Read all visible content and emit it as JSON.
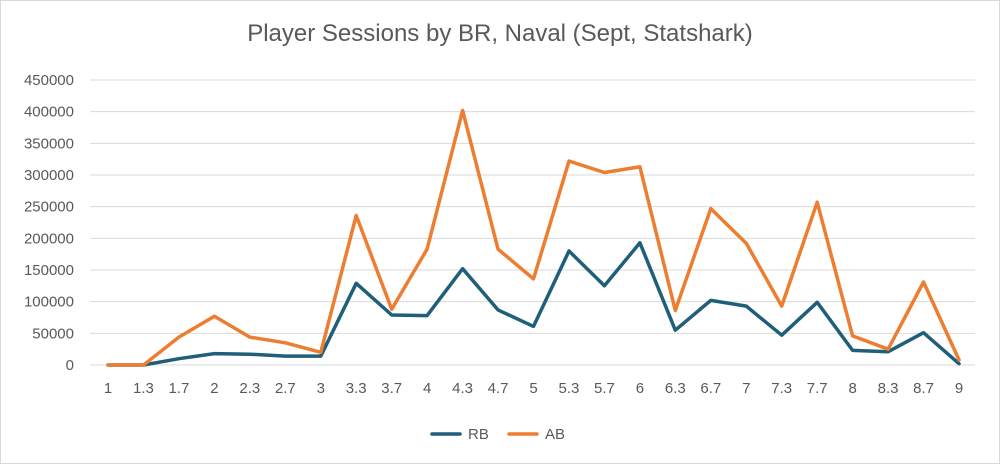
{
  "chart_data": {
    "type": "line",
    "title": "Player Sessions by BR, Naval (Sept, Statshark)",
    "xlabel": "",
    "ylabel": "",
    "categories": [
      "1",
      "1.3",
      "1.7",
      "2",
      "2.3",
      "2.7",
      "3",
      "3.3",
      "3.7",
      "4",
      "4.3",
      "4.7",
      "5",
      "5.3",
      "5.7",
      "6",
      "6.3",
      "6.7",
      "7",
      "7.3",
      "7.7",
      "8",
      "8.3",
      "8.7",
      "9"
    ],
    "ylim": [
      0,
      450000
    ],
    "yticks": [
      0,
      50000,
      100000,
      150000,
      200000,
      250000,
      300000,
      350000,
      400000,
      450000
    ],
    "grid": true,
    "legend_position": "bottom",
    "series": [
      {
        "name": "RB",
        "color": "#1f5f7a",
        "values": [
          0,
          0,
          10000,
          18000,
          17000,
          14000,
          14000,
          129000,
          79000,
          78000,
          152000,
          87000,
          61000,
          180000,
          125000,
          193000,
          55000,
          102000,
          93000,
          47000,
          99000,
          23000,
          21000,
          51000,
          2000
        ]
      },
      {
        "name": "AB",
        "color": "#ed7d31",
        "values": [
          0,
          0,
          44000,
          77000,
          44000,
          35000,
          20000,
          236000,
          88000,
          183000,
          402000,
          183000,
          136000,
          322000,
          304000,
          313000,
          86000,
          247000,
          192000,
          93000,
          257000,
          46000,
          25000,
          131000,
          8000
        ]
      }
    ]
  }
}
